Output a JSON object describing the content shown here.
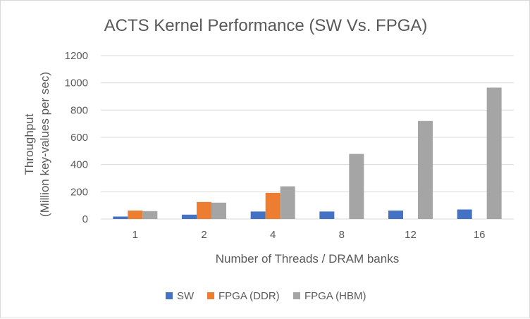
{
  "chart_data": {
    "type": "bar",
    "title": "ACTS Kernel  Performance  (SW Vs. FPGA)",
    "xlabel": "Number of Threads / DRAM banks",
    "ylabel": [
      "Throughput",
      "(Million key-values  per sec)"
    ],
    "categories": [
      "1",
      "2",
      "4",
      "8",
      "12",
      "16"
    ],
    "ylim": [
      0,
      1200
    ],
    "yticks": [
      0,
      200,
      400,
      600,
      800,
      1000,
      1200
    ],
    "grid": true,
    "legend_position": "bottom",
    "series": [
      {
        "name": "SW",
        "color": "#4472c4",
        "values": [
          18,
          32,
          55,
          55,
          62,
          70
        ]
      },
      {
        "name": "FPGA (DDR)",
        "color": "#ed7d31",
        "values": [
          62,
          125,
          192,
          null,
          null,
          null
        ]
      },
      {
        "name": "FPGA (HBM)",
        "color": "#a5a5a5",
        "values": [
          58,
          120,
          240,
          478,
          720,
          965
        ]
      }
    ]
  }
}
